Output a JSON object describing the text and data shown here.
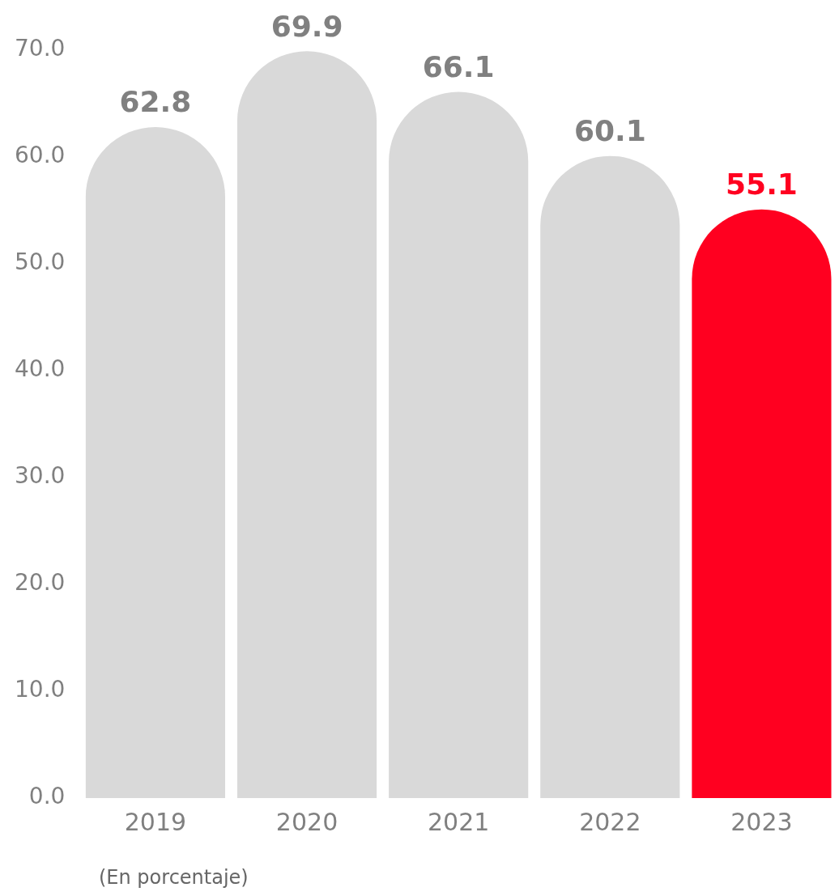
{
  "chart_data": {
    "type": "bar",
    "categories": [
      "2019",
      "2020",
      "2021",
      "2022",
      "2023"
    ],
    "values": [
      62.8,
      69.9,
      66.1,
      60.1,
      55.1
    ],
    "colors": [
      "#d9d9d9",
      "#d9d9d9",
      "#d9d9d9",
      "#d9d9d9",
      "#ff0020"
    ],
    "ylim": [
      0,
      70
    ],
    "yticks": [
      {
        "value": 0,
        "label": "0.0"
      },
      {
        "value": 10,
        "label": "10.0"
      },
      {
        "value": 20,
        "label": "20.0"
      },
      {
        "value": 30,
        "label": "30.0"
      },
      {
        "value": 40,
        "label": "40.0"
      },
      {
        "value": 50,
        "label": "50.0"
      },
      {
        "value": 60,
        "label": "60.0"
      },
      {
        "value": 70,
        "label": "70.0"
      }
    ],
    "grid": false,
    "legend": false,
    "data_labels": true,
    "annotations": [
      "(En porcentaje)"
    ]
  }
}
